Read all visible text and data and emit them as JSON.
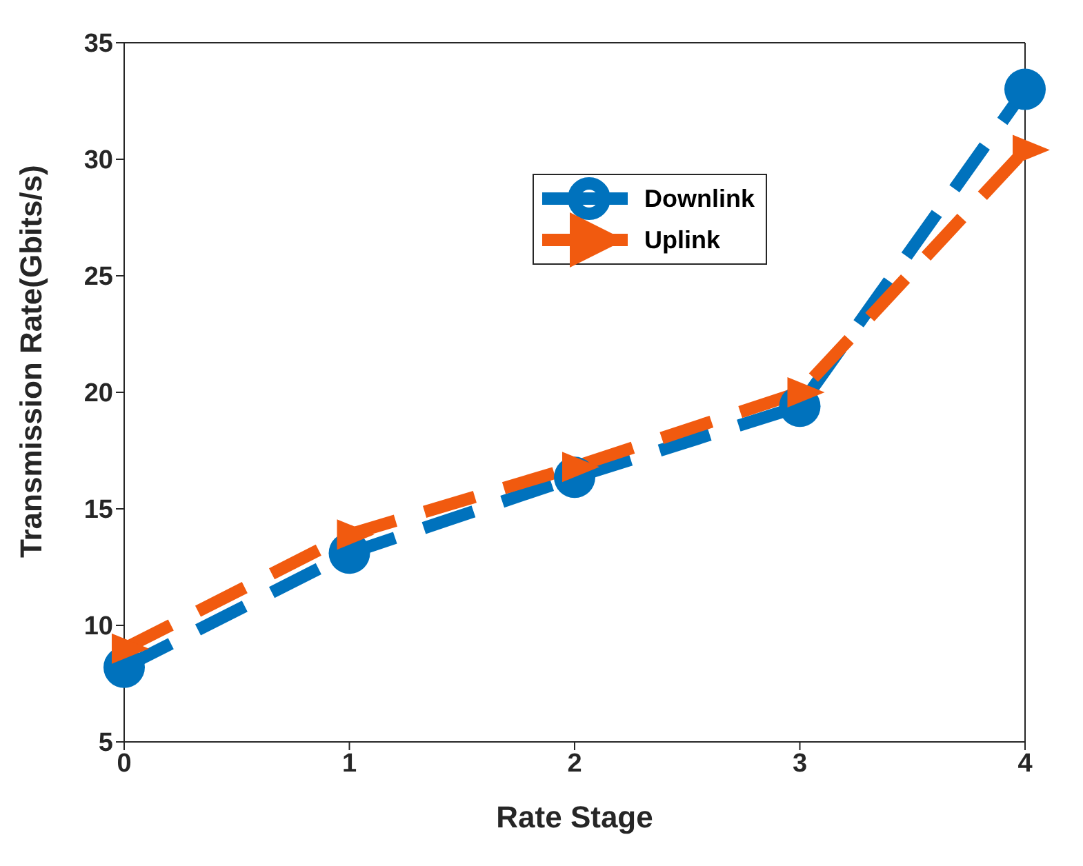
{
  "chart_data": {
    "type": "line",
    "xlabel": "Rate Stage",
    "ylabel": "Transmission Rate(Gbits/s)",
    "x": [
      0,
      1,
      2,
      3,
      4
    ],
    "series": [
      {
        "name": "Downlink",
        "color": "#0072bd",
        "marker": "circle",
        "values": [
          8.2,
          13.1,
          16.35,
          19.4,
          33.0
        ]
      },
      {
        "name": "Uplink",
        "color": "#f15a0f",
        "marker": "triangle",
        "values": [
          9.0,
          13.9,
          16.8,
          20.0,
          30.4
        ]
      }
    ],
    "xlim": [
      0,
      4
    ],
    "xticks": [
      0,
      1,
      2,
      3,
      4
    ],
    "ylim": [
      5,
      35
    ],
    "yticks": [
      5,
      10,
      15,
      20,
      25,
      30,
      35
    ],
    "line_style": "dashed",
    "legend": "top",
    "grid": false
  }
}
